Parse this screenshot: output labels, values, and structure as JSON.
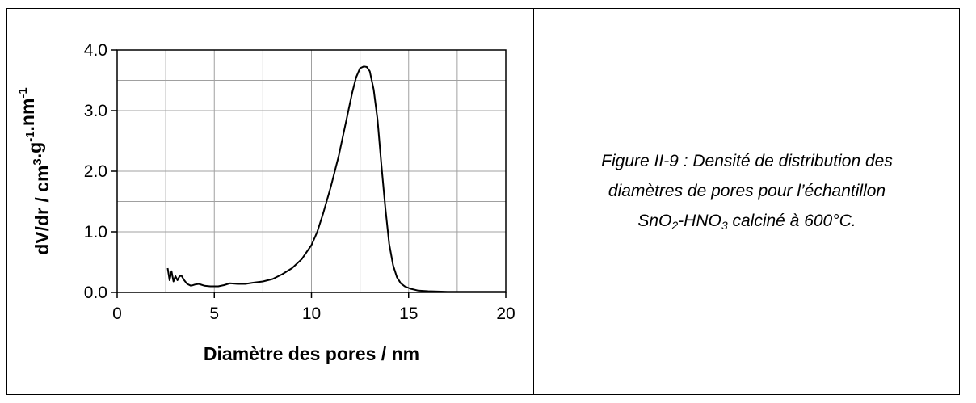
{
  "chart_data": {
    "type": "line",
    "xlabel": "Diamètre des pores / nm",
    "ylabel": {
      "parts": [
        {
          "text": "dV/dr / cm",
          "sup": false
        },
        {
          "text": "3",
          "sup": true
        },
        {
          "text": ".g",
          "sup": false
        },
        {
          "text": "-1",
          "sup": true
        },
        {
          "text": ".nm",
          "sup": false
        },
        {
          "text": "-1",
          "sup": true
        }
      ]
    },
    "xlim": [
      0,
      20
    ],
    "ylim": [
      0,
      4
    ],
    "x_ticks": [
      0,
      5,
      10,
      15,
      20
    ],
    "x_tick_labels": [
      "0",
      "5",
      "10",
      "15",
      "20"
    ],
    "y_ticks": [
      0,
      1,
      2,
      3,
      4
    ],
    "y_tick_labels": [
      "0.0",
      "1.0",
      "2.0",
      "3.0",
      "4.0"
    ],
    "grid": true,
    "line_color": "#000000",
    "series": [
      {
        "x": [
          2.6,
          2.7,
          2.8,
          2.9,
          3.0,
          3.1,
          3.2,
          3.3,
          3.45,
          3.6,
          3.8,
          4.0,
          4.2,
          4.5,
          4.8,
          5.2,
          5.5,
          5.8,
          6.2,
          6.6,
          7.0,
          7.5,
          8.0,
          8.5,
          9.0,
          9.5,
          10.0,
          10.3,
          10.6,
          11.0,
          11.4,
          11.8,
          12.1,
          12.3,
          12.5,
          12.7,
          12.85,
          13.0,
          13.2,
          13.4,
          13.6,
          13.8,
          14.0,
          14.2,
          14.4,
          14.6,
          14.8,
          15.1,
          15.5,
          16.0,
          16.5,
          17.0,
          18.0,
          19.0,
          20.0
        ],
        "y": [
          0.4,
          0.2,
          0.35,
          0.18,
          0.27,
          0.2,
          0.26,
          0.28,
          0.2,
          0.14,
          0.11,
          0.13,
          0.14,
          0.11,
          0.1,
          0.1,
          0.12,
          0.15,
          0.14,
          0.14,
          0.16,
          0.18,
          0.22,
          0.3,
          0.4,
          0.55,
          0.78,
          1.0,
          1.3,
          1.75,
          2.25,
          2.85,
          3.3,
          3.55,
          3.7,
          3.73,
          3.72,
          3.65,
          3.35,
          2.85,
          2.1,
          1.4,
          0.8,
          0.45,
          0.25,
          0.15,
          0.1,
          0.06,
          0.03,
          0.02,
          0.015,
          0.01,
          0.01,
          0.01,
          0.01
        ]
      }
    ]
  },
  "caption": {
    "line1": "Figure II-9 : Densité de distribution des",
    "line2": "diamètres de pores pour l’échantillon",
    "line3_parts": [
      {
        "text": "SnO",
        "sub": false
      },
      {
        "text": "2",
        "sub": true
      },
      {
        "text": "-HNO",
        "sub": false
      },
      {
        "text": "3",
        "sub": true
      },
      {
        "text": " calciné à 600°C.",
        "sub": false
      }
    ]
  }
}
